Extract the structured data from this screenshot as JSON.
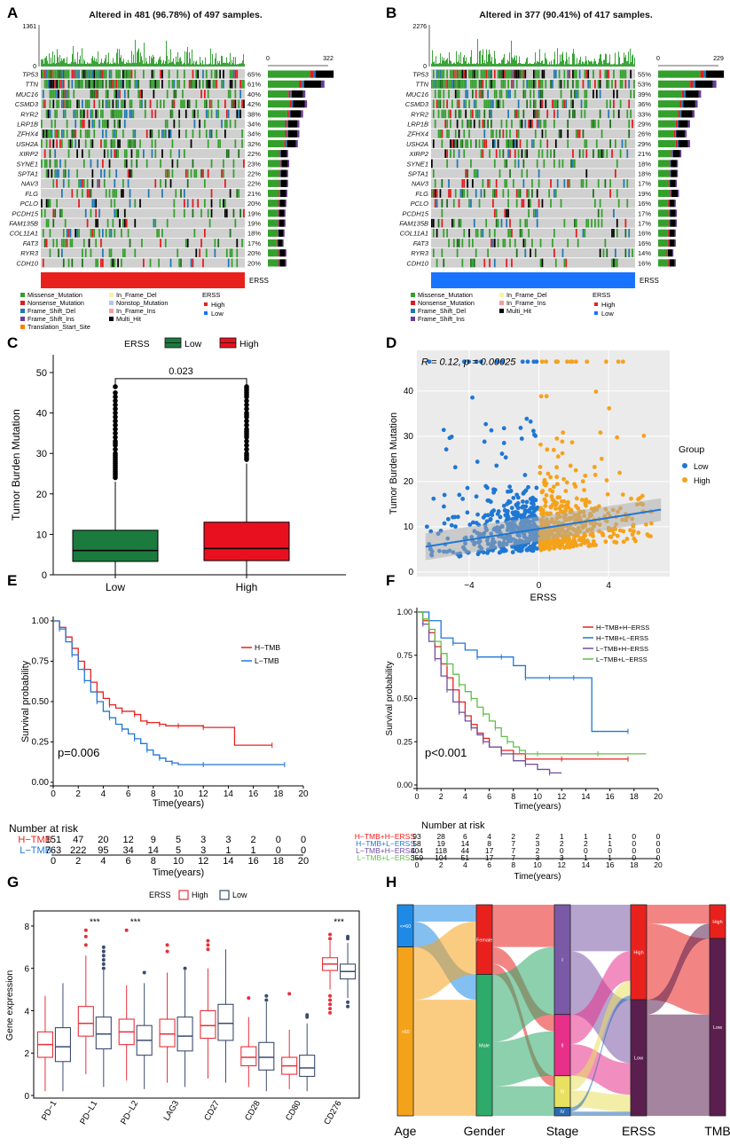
{
  "chart_data": [
    {
      "panel": "A",
      "type": "oncoplot",
      "title": "Altered in 481 (96.78%) of 497 samples.",
      "tmb_axis_max": 1361,
      "tmb_axis_min": 0,
      "bar_axis_max": 322,
      "bar_axis_min": 0,
      "genes": [
        "TP53",
        "TTN",
        "MUC16",
        "CSMD3",
        "RYR2",
        "LRP1B",
        "ZFHX4",
        "USH2A",
        "XIRP2",
        "SYNE1",
        "SPTA1",
        "NAV3",
        "FLG",
        "PCLO",
        "PCDH15",
        "FAM135B",
        "COL11A1",
        "FAT3",
        "RYR3",
        "CDH10"
      ],
      "percents": [
        "65%",
        "61%",
        "40%",
        "42%",
        "38%",
        "34%",
        "34%",
        "32%",
        "22%",
        "23%",
        "22%",
        "22%",
        "21%",
        "20%",
        "19%",
        "19%",
        "18%",
        "17%",
        "20%",
        "20%"
      ],
      "bar_counts": [
        322,
        302,
        200,
        209,
        188,
        168,
        168,
        160,
        108,
        114,
        108,
        108,
        104,
        99,
        94,
        94,
        89,
        84,
        99,
        99
      ],
      "group_label": "ERSS",
      "group_color": "#e8211d",
      "legend_mutations": [
        "Missense_Mutation",
        "Nonsense_Mutation",
        "Frame_Shift_Del",
        "Frame_Shift_Ins",
        "Translation_Start_Site",
        "In_Frame_Del",
        "Nonstop_Mutation",
        "In_Frame_Ins",
        "Multi_Hit"
      ],
      "legend_mutation_colors": [
        "#33a02c",
        "#e31a1c",
        "#1f78b4",
        "#6a3d9a",
        "#ff7f00",
        "#f5f5a0",
        "#a6cee3",
        "#fb9a99",
        "#000000"
      ],
      "legend_group_title": "ERSS",
      "legend_groups": [
        "High",
        "Low"
      ],
      "legend_group_colors": [
        "#e8211d",
        "#1874ff"
      ]
    },
    {
      "panel": "B",
      "type": "oncoplot",
      "title": "Altered in 377 (90.41%) of 417 samples.",
      "tmb_axis_max": 2276,
      "tmb_axis_min": 0,
      "bar_axis_max": 229,
      "bar_axis_min": 0,
      "genes": [
        "TP53",
        "TTN",
        "MUC16",
        "CSMD3",
        "RYR2",
        "LRP1B",
        "ZFHX4",
        "USH2A",
        "XIRP2",
        "SYNE1",
        "SPTA1",
        "NAV3",
        "FLG",
        "PCLO",
        "PCDH15",
        "FAM135B",
        "COL11A1",
        "FAT3",
        "RYR3",
        "CDH10"
      ],
      "percents": [
        "55%",
        "53%",
        "39%",
        "36%",
        "33%",
        "29%",
        "26%",
        "29%",
        "21%",
        "18%",
        "18%",
        "17%",
        "19%",
        "16%",
        "17%",
        "17%",
        "16%",
        "16%",
        "14%",
        "16%"
      ],
      "bar_counts": [
        229,
        221,
        163,
        150,
        138,
        121,
        108,
        121,
        88,
        75,
        75,
        71,
        79,
        67,
        71,
        71,
        67,
        67,
        58,
        67
      ],
      "group_label": "ERSS",
      "group_color": "#1874ff",
      "legend_mutations": [
        "Missense_Mutation",
        "Nonsense_Mutation",
        "Frame_Shift_Del",
        "Frame_Shift_Ins",
        "In_Frame_Del",
        "In_Frame_Ins",
        "Multi_Hit"
      ],
      "legend_mutation_colors": [
        "#33a02c",
        "#e31a1c",
        "#1f78b4",
        "#6a3d9a",
        "#f5f5a0",
        "#fb9a99",
        "#000000"
      ],
      "legend_group_title": "ERSS",
      "legend_groups": [
        "High",
        "Low"
      ],
      "legend_group_colors": [
        "#e8211d",
        "#1874ff"
      ]
    },
    {
      "panel": "C",
      "type": "boxplot",
      "legend_title": "ERSS",
      "legend": [
        "Low",
        "High"
      ],
      "colors": [
        "#1b7a3e",
        "#e8101f"
      ],
      "categories": [
        "Low",
        "High"
      ],
      "ylabel": "Tumor Burden Mutation",
      "ylim": [
        0,
        50
      ],
      "yticks": [
        0,
        10,
        20,
        30,
        40,
        50
      ],
      "pvalue": "0.023",
      "boxes": [
        {
          "name": "Low",
          "q1": 3.3,
          "median": 6.0,
          "q3": 11.0,
          "lower": 0,
          "upper": 23.0
        },
        {
          "name": "High",
          "q1": 3.5,
          "median": 6.5,
          "q3": 13.0,
          "lower": 0,
          "upper": 27.5
        }
      ],
      "outliers": [
        [
          24,
          24.5,
          25,
          25.5,
          26,
          26.5,
          27,
          27.5,
          28,
          28.5,
          29,
          29.5,
          30,
          31,
          32,
          32.5,
          33,
          34,
          35,
          36,
          37,
          38,
          39,
          40,
          41,
          42,
          43,
          44,
          45,
          46.5
        ],
        [
          28.5,
          29,
          29.5,
          30,
          31,
          32,
          33,
          34,
          34.5,
          35,
          35.5,
          36,
          37,
          38,
          39,
          39.5,
          40,
          41,
          42,
          43,
          44,
          44.5,
          45,
          45.5,
          46,
          46.5
        ]
      ]
    },
    {
      "panel": "D",
      "type": "scatter",
      "annotation": "R = 0.12, p = 0.00025",
      "xlabel": "ERSS",
      "ylabel": "Tumor Burden Mutation",
      "xlim": [
        -7,
        7.5
      ],
      "ylim": [
        -1,
        49
      ],
      "xticks": [
        -4,
        0,
        4
      ],
      "yticks": [
        0,
        10,
        20,
        30,
        40
      ],
      "legend_title": "Group",
      "legend": [
        "Low",
        "High"
      ],
      "colors": [
        "#1f77d4",
        "#f5a21b"
      ],
      "fit_line": {
        "x": [
          -6.5,
          7
        ],
        "y": [
          5.6,
          13.8
        ]
      },
      "fit_color": "#1f77d4"
    },
    {
      "panel": "E",
      "type": "km",
      "xlabel": "Time(years)",
      "ylabel": "Survival probability",
      "xlim": [
        0,
        20
      ],
      "ylim": [
        0,
        1
      ],
      "xticks": [
        0,
        2,
        4,
        6,
        8,
        10,
        12,
        14,
        16,
        18,
        20
      ],
      "yticks": [
        "0.00",
        "0.25",
        "0.50",
        "0.75",
        "1.00"
      ],
      "pvalue": "p=0.006",
      "risk_title": "Number at risk",
      "series": [
        {
          "name": "H−TMB",
          "color": "#e8211d",
          "time": [
            0,
            0.5,
            1,
            1.5,
            2,
            2.5,
            3,
            3.5,
            4,
            4.5,
            5,
            5.5,
            6,
            6.5,
            7,
            7.5,
            8,
            8.5,
            9,
            10,
            11,
            12,
            14.5,
            17.5
          ],
          "surv": [
            1,
            0.96,
            0.9,
            0.83,
            0.75,
            0.7,
            0.62,
            0.56,
            0.52,
            0.48,
            0.46,
            0.44,
            0.44,
            0.42,
            0.38,
            0.37,
            0.37,
            0.36,
            0.35,
            0.35,
            0.35,
            0.34,
            0.23,
            0.23
          ],
          "risk": [
            "151",
            "47",
            "20",
            "12",
            "9",
            "5",
            "3",
            "3",
            "2",
            "0",
            "0"
          ]
        },
        {
          "name": "L−TMB",
          "color": "#1f77d4",
          "time": [
            0,
            0.5,
            1,
            1.5,
            2,
            2.5,
            3,
            3.5,
            4,
            4.5,
            5,
            5.5,
            6,
            6.5,
            7,
            7.5,
            8,
            8.5,
            9,
            9.5,
            10,
            12,
            15,
            18.5
          ],
          "surv": [
            1,
            0.95,
            0.87,
            0.79,
            0.7,
            0.63,
            0.56,
            0.5,
            0.44,
            0.4,
            0.36,
            0.33,
            0.3,
            0.27,
            0.24,
            0.2,
            0.17,
            0.15,
            0.13,
            0.12,
            0.11,
            0.11,
            0.11,
            0.11
          ],
          "risk": [
            "763",
            "222",
            "95",
            "34",
            "14",
            "5",
            "3",
            "1",
            "1",
            "0",
            "0"
          ]
        }
      ]
    },
    {
      "panel": "F",
      "type": "km",
      "xlabel": "Time(years)",
      "ylabel": "Survival probability",
      "xlim": [
        0,
        20
      ],
      "ylim": [
        0,
        1
      ],
      "xticks": [
        0,
        2,
        4,
        6,
        8,
        10,
        12,
        14,
        16,
        18,
        20
      ],
      "yticks": [
        "0.00",
        "0.25",
        "0.50",
        "0.75",
        "1.00"
      ],
      "pvalue": "p<0.001",
      "risk_title": "Number at risk",
      "series": [
        {
          "name": "H−TMB+H−ERSS",
          "color": "#e8211d",
          "time": [
            0,
            0.5,
            1,
            1.5,
            2,
            2.5,
            3,
            3.5,
            4,
            4.5,
            5,
            5.5,
            6,
            7,
            8,
            9,
            10,
            12,
            14,
            17.5
          ],
          "surv": [
            1,
            0.95,
            0.88,
            0.8,
            0.7,
            0.62,
            0.55,
            0.48,
            0.4,
            0.35,
            0.3,
            0.27,
            0.22,
            0.2,
            0.18,
            0.15,
            0.15,
            0.15,
            0.15,
            0.15
          ],
          "risk": [
            "93",
            "28",
            "6",
            "4",
            "2",
            "2",
            "1",
            "1",
            "1",
            "0",
            "0"
          ]
        },
        {
          "name": "H−TMB+L−ERSS",
          "color": "#1f77d4",
          "time": [
            0,
            1,
            2,
            3,
            4,
            5,
            6,
            7,
            8,
            9,
            10,
            11,
            12,
            13,
            14.5,
            17.5
          ],
          "surv": [
            1,
            0.95,
            0.85,
            0.82,
            0.78,
            0.74,
            0.74,
            0.74,
            0.69,
            0.62,
            0.62,
            0.62,
            0.62,
            0.62,
            0.31,
            0.31
          ],
          "risk": [
            "58",
            "19",
            "14",
            "8",
            "7",
            "3",
            "2",
            "2",
            "1",
            "0",
            "0"
          ]
        },
        {
          "name": "L−TMB+H−ERSS",
          "color": "#6f4e9f",
          "time": [
            0,
            0.5,
            1,
            1.5,
            2,
            2.5,
            3,
            3.5,
            4,
            4.5,
            5,
            5.5,
            6,
            7,
            8,
            9,
            10,
            11,
            12
          ],
          "surv": [
            1,
            0.93,
            0.83,
            0.73,
            0.63,
            0.55,
            0.48,
            0.42,
            0.37,
            0.33,
            0.29,
            0.25,
            0.22,
            0.18,
            0.14,
            0.12,
            0.09,
            0.07,
            0.07
          ],
          "risk": [
            "404",
            "118",
            "44",
            "17",
            "7",
            "2",
            "0",
            "0",
            "0",
            "0",
            "0"
          ]
        },
        {
          "name": "L−TMB+L−ERSS",
          "color": "#5fbf4a",
          "time": [
            0,
            0.5,
            1,
            1.5,
            2,
            2.5,
            3,
            3.5,
            4,
            4.5,
            5,
            5.5,
            6,
            6.5,
            7,
            7.5,
            8,
            8.5,
            9,
            10,
            12,
            15,
            19
          ],
          "surv": [
            1,
            0.96,
            0.9,
            0.83,
            0.76,
            0.7,
            0.64,
            0.58,
            0.54,
            0.5,
            0.45,
            0.41,
            0.37,
            0.33,
            0.28,
            0.25,
            0.22,
            0.2,
            0.18,
            0.18,
            0.18,
            0.18,
            0.18
          ],
          "risk": [
            "359",
            "104",
            "51",
            "17",
            "7",
            "3",
            "3",
            "1",
            "1",
            "0",
            "0"
          ]
        }
      ]
    },
    {
      "panel": "G",
      "type": "grouped_boxplot",
      "legend_title": "ERSS",
      "legend": [
        "High",
        "Low"
      ],
      "colors": [
        "#e8303a",
        "#3b4c6e"
      ],
      "categories": [
        "PD−1",
        "PD−L1",
        "PD−L2",
        "LAG3",
        "CD27",
        "CD28",
        "CD80",
        "CD276"
      ],
      "ylabel": "Gene expression",
      "ylim": [
        0,
        8.5
      ],
      "yticks": [
        0,
        2,
        4,
        6,
        8
      ],
      "significance": [
        "",
        "***",
        "***",
        "",
        "",
        "",
        "",
        "***"
      ],
      "high": [
        {
          "q1": 1.8,
          "median": 2.4,
          "q3": 3.0,
          "lower": 0.2,
          "upper": 4.7
        },
        {
          "q1": 2.8,
          "median": 3.4,
          "q3": 4.2,
          "lower": 1.0,
          "upper": 6.6
        },
        {
          "q1": 2.4,
          "median": 3.0,
          "q3": 3.6,
          "lower": 0.7,
          "upper": 5.2
        },
        {
          "q1": 2.3,
          "median": 2.9,
          "q3": 3.6,
          "lower": 0.6,
          "upper": 5.8
        },
        {
          "q1": 2.7,
          "median": 3.3,
          "q3": 4.0,
          "lower": 0.8,
          "upper": 6.0
        },
        {
          "q1": 1.4,
          "median": 1.8,
          "q3": 2.3,
          "lower": 0.4,
          "upper": 3.7
        },
        {
          "q1": 1.0,
          "median": 1.4,
          "q3": 1.8,
          "lower": 0.3,
          "upper": 3.1
        },
        {
          "q1": 5.9,
          "median": 6.2,
          "q3": 6.5,
          "lower": 5.0,
          "upper": 7.3
        }
      ],
      "low": [
        {
          "q1": 1.6,
          "median": 2.3,
          "q3": 3.2,
          "lower": 0.2,
          "upper": 5.3
        },
        {
          "q1": 2.2,
          "median": 2.9,
          "q3": 3.7,
          "lower": 0.4,
          "upper": 5.9
        },
        {
          "q1": 1.9,
          "median": 2.6,
          "q3": 3.3,
          "lower": 0.3,
          "upper": 5.3
        },
        {
          "q1": 2.1,
          "median": 2.8,
          "q3": 3.7,
          "lower": 0.4,
          "upper": 5.9
        },
        {
          "q1": 2.6,
          "median": 3.4,
          "q3": 4.3,
          "lower": 0.6,
          "upper": 6.9
        },
        {
          "q1": 1.2,
          "median": 1.8,
          "q3": 2.5,
          "lower": 0.2,
          "upper": 4.4
        },
        {
          "q1": 0.9,
          "median": 1.3,
          "q3": 1.9,
          "lower": 0.2,
          "upper": 3.4
        },
        {
          "q1": 5.5,
          "median": 5.85,
          "q3": 6.2,
          "lower": 4.6,
          "upper": 7.2
        }
      ],
      "high_outliers": [
        [],
        [
          7.8,
          7.5,
          7.1
        ],
        [
          7.8
        ],
        [
          7.1,
          6.8
        ],
        [
          7.3,
          7.1,
          6.9
        ],
        [
          4.6
        ],
        [
          4.8
        ],
        [
          7.6,
          7.4,
          4.7,
          4.5,
          4.3,
          4.1,
          3.9
        ]
      ],
      "low_outliers": [
        [],
        [
          7.0,
          6.8,
          6.6,
          6.4,
          6.2,
          6.0
        ],
        [
          5.8
        ],
        [
          6.0
        ],
        [],
        [
          4.7,
          4.5
        ],
        [
          3.8,
          3.7
        ],
        [
          7.5,
          7.4,
          4.4,
          4.2
        ]
      ]
    },
    {
      "panel": "H",
      "type": "sankey",
      "axes": [
        "Age",
        "Gender",
        "Stage",
        "ERSS",
        "TMB"
      ],
      "nodes": {
        "Age": [
          {
            "label": "<=60",
            "value": 20,
            "color": "#1e8ae6"
          },
          {
            "label": ">60",
            "value": 80,
            "color": "#f5a21b"
          }
        ],
        "Gender": [
          {
            "label": "Female",
            "value": 33,
            "color": "#e8211d"
          },
          {
            "label": "Male",
            "value": 67,
            "color": "#2eaa6a"
          }
        ],
        "Stage": [
          {
            "label": "I",
            "value": 52,
            "color": "#7a5aa6"
          },
          {
            "label": "II",
            "value": 29,
            "color": "#e8308a"
          },
          {
            "label": "III",
            "value": 15,
            "color": "#e8e060"
          },
          {
            "label": "IV",
            "value": 4,
            "color": "#2a6bb0"
          }
        ],
        "ERSS": [
          {
            "label": "High",
            "value": 45,
            "color": "#e8211d"
          },
          {
            "label": "Low",
            "value": 55,
            "color": "#5a1f4e"
          }
        ],
        "TMB": [
          {
            "label": "High",
            "value": 16,
            "color": "#e8211d"
          },
          {
            "label": "Low",
            "value": 84,
            "color": "#5a1f4e"
          }
        ]
      }
    }
  ],
  "panel_labels": [
    "A",
    "B",
    "C",
    "D",
    "E",
    "F",
    "G",
    "H"
  ]
}
